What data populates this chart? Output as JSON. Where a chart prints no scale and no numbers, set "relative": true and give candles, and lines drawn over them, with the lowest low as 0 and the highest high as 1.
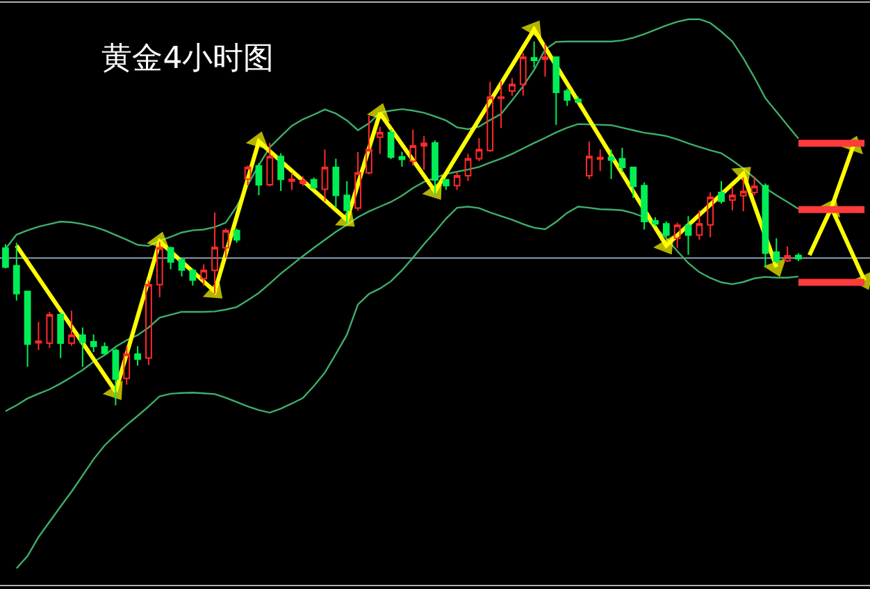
{
  "chart_data": {
    "type": "candlestick",
    "title": "黄金4小时图",
    "relative": true,
    "categories": [
      null,
      null,
      null,
      null,
      null,
      null,
      null,
      null,
      null,
      null,
      null,
      null,
      null,
      null,
      null,
      null,
      null,
      null,
      null,
      null,
      null,
      null,
      null,
      null,
      null,
      null,
      null,
      null,
      null,
      null,
      null,
      null,
      null,
      null,
      null,
      null,
      null,
      null,
      null,
      null,
      null,
      null,
      null,
      null,
      null,
      null,
      null,
      null,
      null,
      null,
      null,
      null,
      null,
      null,
      null,
      null,
      null,
      null,
      null,
      null,
      null,
      null,
      null,
      null,
      null,
      null,
      null,
      null,
      null,
      null,
      null,
      null,
      null,
      null,
      null,
      null,
      null,
      null,
      null
    ],
    "colors": [
      "#00ee55",
      "#00ee55",
      "#00ee55",
      "#ff2a2a",
      "#ff2a2a",
      "#00ee55",
      "#ff2a2a",
      "#00ee55",
      "#00ee55",
      "#00ee55",
      "#00ee55",
      "#ff2a2a",
      "#00ee55",
      "#ff2a2a",
      "#ff2a2a",
      "#00ee55",
      "#00ee55",
      "#00ee55",
      "#ff2a2a",
      "#ff2a2a",
      "#ff2a2a",
      "#00ee55",
      "#ff2a2a",
      "#00ee55",
      "#ff2a2a",
      "#00ee55",
      "#ff2a2a",
      "#ff2a2a",
      "#00ee55",
      "#ff2a2a",
      "#00ee55",
      "#00ee55",
      "#ff2a2a",
      "#ff2a2a",
      "#ff2a2a",
      "#00ee55",
      "#00ee55",
      "#ff2a2a",
      "#ff2a2a",
      "#00ee55",
      "#00ee55",
      "#ff2a2a",
      "#ff2a2a",
      "#ff2a2a",
      "#ff2a2a",
      "#ff2a2a",
      "#ff2a2a",
      "#ff2a2a",
      "#00ee55",
      "#ff2a2a",
      "#00ee55",
      "#00ee55",
      "#00ee55",
      "#ff2a2a",
      "#ff2a2a",
      "#00ee55",
      "#00ee55",
      "#00ee55",
      "#00ee55",
      "#00ee55",
      "#00ee55",
      "#ff2a2a",
      "#00ee55",
      "#ff2a2a",
      "#ff2a2a",
      "#00ee55",
      "#ff2a2a",
      "#ff2a2a",
      "#ff2a2a",
      "#00ee55",
      "#00ee55",
      "#ff2a2a",
      "#00ee55",
      null,
      null,
      null,
      null,
      null,
      null
    ],
    "ohlc": [
      [
        0.432,
        0.443,
        0.376,
        0.38
      ],
      [
        0.384,
        0.447,
        0.288,
        0.307
      ],
      [
        0.313,
        0.313,
        0.106,
        0.168
      ],
      [
        0.172,
        0.229,
        0.152,
        0.176
      ],
      [
        0.171,
        0.257,
        0.158,
        0.249
      ],
      [
        0.249,
        0.257,
        0.13,
        0.171
      ],
      [
        0.171,
        0.26,
        0.164,
        0.193
      ],
      [
        0.193,
        0.214,
        0.106,
        0.173
      ],
      [
        0.175,
        0.195,
        0.146,
        0.162
      ],
      [
        0.161,
        0.173,
        0.139,
        0.143
      ],
      [
        0.151,
        0.156,
        0,
        0.072
      ],
      [
        0.074,
        0.163,
        0.057,
        0.141
      ],
      [
        0.141,
        0.163,
        0.109,
        0.127
      ],
      [
        0.13,
        0.343,
        0.111,
        0.332
      ],
      [
        0.332,
        0.449,
        0.297,
        0.433
      ],
      [
        0.433,
        0.436,
        0.374,
        0.394
      ],
      [
        0.4,
        0.406,
        0.354,
        0.372
      ],
      [
        0.371,
        0.376,
        0.329,
        0.344
      ],
      [
        0.348,
        0.387,
        0.329,
        0.371
      ],
      [
        0.371,
        0.53,
        0.307,
        0.434
      ],
      [
        0.433,
        0.486,
        0.406,
        0.48
      ],
      [
        0.48,
        0.486,
        0.447,
        0.455
      ],
      [
        0.622,
        0.659,
        0.604,
        0.654
      ],
      [
        0.658,
        0.666,
        0.577,
        0.606
      ],
      [
        0.606,
        0.721,
        0.602,
        0.684
      ],
      [
        0.684,
        0.693,
        0.589,
        0.621
      ],
      [
        0.616,
        0.639,
        0.592,
        0.621
      ],
      [
        0.61,
        0.629,
        0.603,
        0.618
      ],
      [
        0.62,
        0.626,
        0.594,
        0.598
      ],
      [
        0.594,
        0.703,
        0.561,
        0.654
      ],
      [
        0.654,
        0.678,
        0.542,
        0.577
      ],
      [
        0.577,
        0.616,
        0.499,
        0.536
      ],
      [
        0.542,
        0.696,
        0.535,
        0.639
      ],
      [
        0.639,
        0.796,
        0.635,
        0.703
      ],
      [
        0.737,
        0.765,
        0.691,
        0.75
      ],
      [
        0.75,
        0.759,
        0.677,
        0.682
      ],
      [
        0.683,
        0.697,
        0.656,
        0.676
      ],
      [
        0.671,
        0.758,
        0.659,
        0.713
      ],
      [
        0.713,
        0.74,
        0.647,
        0.72
      ],
      [
        0.721,
        0.728,
        0.577,
        0.619
      ],
      [
        0.62,
        0.622,
        0.592,
        0.604
      ],
      [
        0.604,
        0.641,
        0.592,
        0.631
      ],
      [
        0.631,
        0.691,
        0.616,
        0.678
      ],
      [
        0.678,
        0.734,
        0.671,
        0.703
      ],
      [
        0.7,
        0.889,
        0.697,
        0.847
      ],
      [
        0.844,
        0.891,
        0.762,
        0.847
      ],
      [
        0.864,
        0.899,
        0.851,
        0.882
      ],
      [
        0.882,
        0.969,
        0.851,
        0.957
      ],
      [
        0.955,
        1,
        0.928,
        0.948
      ],
      [
        0.951,
        0.994,
        0.903,
        0.957
      ],
      [
        0.957,
        0.957,
        0.771,
        0.86
      ],
      [
        0.864,
        0.87,
        0.823,
        0.839
      ],
      [
        0.841,
        0.848,
        0.832,
        0.834
      ],
      [
        0.631,
        0.725,
        0.622,
        0.684
      ],
      [
        0.677,
        0.703,
        0.644,
        0.681
      ],
      [
        0.682,
        0.703,
        0.622,
        0.674
      ],
      [
        0.678,
        0.708,
        0.641,
        0.654
      ],
      [
        0.654,
        0.654,
        0.57,
        0.602
      ],
      [
        0.604,
        0.613,
        0.483,
        0.505
      ],
      [
        0.507,
        0.517,
        0.492,
        0.499
      ],
      [
        0.499,
        0.505,
        0.462,
        0.468
      ],
      [
        0.459,
        0.502,
        0.433,
        0.495
      ],
      [
        0.495,
        0.52,
        0.414,
        0.468
      ],
      [
        0.468,
        0.536,
        0.455,
        0.499
      ],
      [
        0.496,
        0.585,
        0.462,
        0.572
      ],
      [
        0.585,
        0.616,
        0.554,
        0.561
      ],
      [
        0.564,
        0.602,
        0.536,
        0.577
      ],
      [
        0.576,
        0.626,
        0.533,
        0.588
      ],
      [
        0.585,
        0.629,
        0.577,
        0.602
      ],
      [
        0.604,
        0.61,
        0.381,
        0.418
      ],
      [
        0.421,
        0.459,
        0.39,
        0.396
      ],
      [
        0.397,
        0.437,
        0.394,
        0.411
      ],
      [
        0.412,
        0.418,
        0.396,
        0.403
      ],
      null,
      null,
      null,
      null,
      null,
      null
    ],
    "series": [
      {
        "type": "line",
        "color": "#3fae6a",
        "values": [
          0.43,
          0.469,
          0.481,
          0.491,
          0.498,
          0.505,
          0.503,
          0.498,
          0.491,
          0.481,
          0.468,
          0.455,
          0.441,
          0.438,
          0.452,
          0.463,
          0.475,
          0.481,
          0.483,
          0.49,
          0.502,
          0.547,
          0.606,
          0.66,
          0.709,
          0.739,
          0.768,
          0.786,
          0.799,
          0.813,
          0.802,
          0.783,
          0.756,
          0.775,
          0.804,
          0.81,
          0.814,
          0.81,
          0.804,
          0.794,
          0.783,
          0.764,
          0.759,
          0.766,
          0.784,
          0.801,
          0.838,
          0.877,
          0.922,
          0.978,
          0.999,
          1.0,
          1.0,
          1.0,
          1.0,
          1.0,
          1.003,
          1.01,
          1.02,
          1.032,
          1.044,
          1.054,
          1.061,
          1.061,
          1.051,
          1.027,
          1.0,
          0.954,
          0.901,
          0.844,
          0.807,
          0.77,
          0.733,
          null,
          null,
          null,
          null,
          null,
          null
        ]
      },
      {
        "type": "line",
        "color": "#3fae6a",
        "values": [
          -0.016,
          0.0,
          0.019,
          0.032,
          0.044,
          0.06,
          0.078,
          0.097,
          0.12,
          0.138,
          0.161,
          0.179,
          0.193,
          0.214,
          0.241,
          0.249,
          0.257,
          0.257,
          0.257,
          0.258,
          0.263,
          0.27,
          0.289,
          0.309,
          0.335,
          0.362,
          0.386,
          0.41,
          0.433,
          0.455,
          0.477,
          0.496,
          0.517,
          0.533,
          0.546,
          0.559,
          0.576,
          0.597,
          0.614,
          0.625,
          0.636,
          0.642,
          0.648,
          0.655,
          0.667,
          0.678,
          0.691,
          0.706,
          0.721,
          0.735,
          0.75,
          0.763,
          0.773,
          0.772,
          0.771,
          0.77,
          0.763,
          0.756,
          0.749,
          0.745,
          0.74,
          0.731,
          0.72,
          0.71,
          0.701,
          0.693,
          0.673,
          0.651,
          0.625,
          0.597,
          0.577,
          0.559,
          0.54,
          null,
          null,
          null,
          null,
          null,
          null
        ]
      },
      {
        "type": "line",
        "color": "#3fae6a",
        "values": [
          null,
          -0.448,
          -0.414,
          -0.362,
          -0.32,
          -0.278,
          -0.237,
          -0.193,
          -0.148,
          -0.11,
          -0.081,
          -0.054,
          -0.029,
          -0.003,
          0.025,
          0.032,
          0.034,
          0.035,
          0.033,
          0.031,
          0.021,
          0.009,
          -0.003,
          -0.013,
          -0.02,
          -0.009,
          0.005,
          0.02,
          0.053,
          0.09,
          0.141,
          0.194,
          0.277,
          0.306,
          0.321,
          0.341,
          0.371,
          0.406,
          0.443,
          0.477,
          0.513,
          0.543,
          0.546,
          0.542,
          0.53,
          0.52,
          0.51,
          0.498,
          0.488,
          0.484,
          0.504,
          0.529,
          0.546,
          0.543,
          0.539,
          0.538,
          0.536,
          0.528,
          0.517,
          0.489,
          0.459,
          0.424,
          0.391,
          0.366,
          0.35,
          0.338,
          0.333,
          0.339,
          0.349,
          0.353,
          0.351,
          0.351,
          0.354,
          null,
          null,
          null,
          null,
          null,
          null
        ]
      },
      {
        "type": "line",
        "color": "#ffff00",
        "marker": "triangle",
        "values": [
          null,
          0.439,
          null,
          null,
          null,
          null,
          null,
          null,
          null,
          null,
          0.038,
          null,
          null,
          null,
          0.45,
          null,
          null,
          null,
          null,
          0.313,
          null,
          null,
          null,
          0.725,
          null,
          null,
          null,
          null,
          null,
          null,
          null,
          0.51,
          null,
          null,
          0.803,
          null,
          null,
          null,
          null,
          0.588,
          null,
          null,
          null,
          null,
          null,
          null,
          null,
          null,
          1.033,
          null,
          null,
          null,
          null,
          null,
          null,
          null,
          null,
          null,
          null,
          null,
          0.439,
          null,
          null,
          null,
          null,
          null,
          null,
          0.636,
          null,
          null,
          0.38,
          null,
          null,
          null,
          null,
          null,
          null,
          null,
          null
        ]
      },
      {
        "type": "line",
        "color": "#ffff00",
        "marker": "triangle",
        "values": [
          null,
          null,
          null,
          null,
          null,
          null,
          null,
          null,
          null,
          null,
          null,
          null,
          null,
          null,
          null,
          null,
          null,
          null,
          null,
          null,
          null,
          null,
          null,
          null,
          null,
          null,
          null,
          null,
          null,
          null,
          null,
          null,
          null,
          null,
          null,
          null,
          null,
          null,
          null,
          null,
          null,
          null,
          null,
          null,
          null,
          null,
          null,
          null,
          null,
          null,
          null,
          null,
          null,
          null,
          null,
          null,
          null,
          null,
          null,
          null,
          null,
          null,
          null,
          null,
          null,
          null,
          null,
          null,
          null,
          null,
          null,
          null,
          null,
          0.413,
          null,
          0.543,
          null,
          0.714,
          null
        ]
      },
      {
        "type": "line",
        "color": "#ffff00",
        "marker": "triangle",
        "values": [
          null,
          null,
          null,
          null,
          null,
          null,
          null,
          null,
          null,
          null,
          null,
          null,
          null,
          null,
          null,
          null,
          null,
          null,
          null,
          null,
          null,
          null,
          null,
          null,
          null,
          null,
          null,
          null,
          null,
          null,
          null,
          null,
          null,
          null,
          null,
          null,
          null,
          null,
          null,
          null,
          null,
          null,
          null,
          null,
          null,
          null,
          null,
          null,
          null,
          null,
          null,
          null,
          null,
          null,
          null,
          null,
          null,
          null,
          null,
          null,
          null,
          null,
          null,
          null,
          null,
          null,
          null,
          null,
          null,
          null,
          null,
          null,
          null,
          null,
          null,
          0.543,
          null,
          null,
          0.343
        ]
      },
      {
        "type": "line",
        "color": "#ff3b3b",
        "values": [
          null,
          null,
          null,
          null,
          null,
          null,
          null,
          null,
          null,
          null,
          null,
          null,
          null,
          null,
          null,
          null,
          null,
          null,
          null,
          null,
          null,
          null,
          null,
          null,
          null,
          null,
          null,
          null,
          null,
          null,
          null,
          null,
          null,
          null,
          null,
          null,
          null,
          null,
          null,
          null,
          null,
          null,
          null,
          null,
          null,
          null,
          null,
          null,
          null,
          null,
          null,
          null,
          null,
          null,
          null,
          null,
          null,
          null,
          null,
          null,
          null,
          null,
          null,
          null,
          null,
          null,
          null,
          null,
          null,
          null,
          null,
          null,
          0.72,
          0.72,
          0.72,
          0.72,
          0.72,
          0.72,
          0.72
        ]
      },
      {
        "type": "line",
        "color": "#ff3b3b",
        "values": [
          null,
          null,
          null,
          null,
          null,
          null,
          null,
          null,
          null,
          null,
          null,
          null,
          null,
          null,
          null,
          null,
          null,
          null,
          null,
          null,
          null,
          null,
          null,
          null,
          null,
          null,
          null,
          null,
          null,
          null,
          null,
          null,
          null,
          null,
          null,
          null,
          null,
          null,
          null,
          null,
          null,
          null,
          null,
          null,
          null,
          null,
          null,
          null,
          null,
          null,
          null,
          null,
          null,
          null,
          null,
          null,
          null,
          null,
          null,
          null,
          null,
          null,
          null,
          null,
          null,
          null,
          null,
          null,
          null,
          null,
          null,
          null,
          0.538,
          0.538,
          0.538,
          0.538,
          0.538,
          0.538,
          0.538
        ]
      },
      {
        "type": "line",
        "color": "#ff3b3b",
        "values": [
          null,
          null,
          null,
          null,
          null,
          null,
          null,
          null,
          null,
          null,
          null,
          null,
          null,
          null,
          null,
          null,
          null,
          null,
          null,
          null,
          null,
          null,
          null,
          null,
          null,
          null,
          null,
          null,
          null,
          null,
          null,
          null,
          null,
          null,
          null,
          null,
          null,
          null,
          null,
          null,
          null,
          null,
          null,
          null,
          null,
          null,
          null,
          null,
          null,
          null,
          null,
          null,
          null,
          null,
          null,
          null,
          null,
          null,
          null,
          null,
          null,
          null,
          null,
          null,
          null,
          null,
          null,
          null,
          null,
          null,
          null,
          null,
          0.338,
          0.338,
          0.338,
          0.338,
          0.338,
          0.338,
          0.338
        ]
      }
    ],
    "ref_lines": [
      {
        "axis": "y",
        "value": 0.405,
        "color": "#8fa3b8"
      }
    ]
  }
}
